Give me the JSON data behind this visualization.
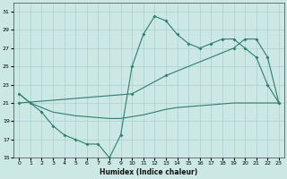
{
  "xlabel": "Humidex (Indice chaleur)",
  "line1_x": [
    0,
    1,
    2,
    3,
    4,
    5,
    6,
    7,
    8,
    9,
    10,
    11,
    12,
    13,
    14,
    15,
    16,
    17,
    18,
    19,
    20,
    21,
    22,
    23
  ],
  "line1_y": [
    22,
    21,
    20,
    18.5,
    17.5,
    17,
    16.5,
    16.5,
    15,
    17.5,
    25,
    28.5,
    30.5,
    30,
    28.5,
    27.5,
    27,
    27.5,
    28,
    28,
    27,
    26,
    23,
    21
  ],
  "line2_x": [
    0,
    1,
    2,
    3,
    4,
    5,
    6,
    7,
    8,
    9,
    10,
    11,
    12,
    13,
    14,
    15,
    16,
    17,
    18,
    19,
    20,
    21,
    22,
    23
  ],
  "line2_y": [
    22,
    21,
    20.5,
    20,
    19.8,
    19.6,
    19.5,
    19.4,
    19.3,
    19.3,
    19.5,
    19.7,
    20,
    20.3,
    20.5,
    20.6,
    20.7,
    20.8,
    20.9,
    21,
    21,
    21,
    21,
    21
  ],
  "line3_x": [
    0,
    10,
    13,
    19,
    20,
    21,
    22,
    23
  ],
  "line3_y": [
    21,
    22,
    24,
    27,
    28,
    28,
    26,
    21
  ],
  "color": "#2e7d72",
  "bg_color": "#cce8e5",
  "grid_color": "#aad0cc",
  "ylim": [
    15,
    32
  ],
  "yticks": [
    15,
    17,
    19,
    21,
    23,
    25,
    27,
    29,
    31
  ],
  "xlim": [
    -0.5,
    23.5
  ],
  "xticks": [
    0,
    1,
    2,
    3,
    4,
    5,
    6,
    7,
    8,
    9,
    10,
    11,
    12,
    13,
    14,
    15,
    16,
    17,
    18,
    19,
    20,
    21,
    22,
    23
  ]
}
